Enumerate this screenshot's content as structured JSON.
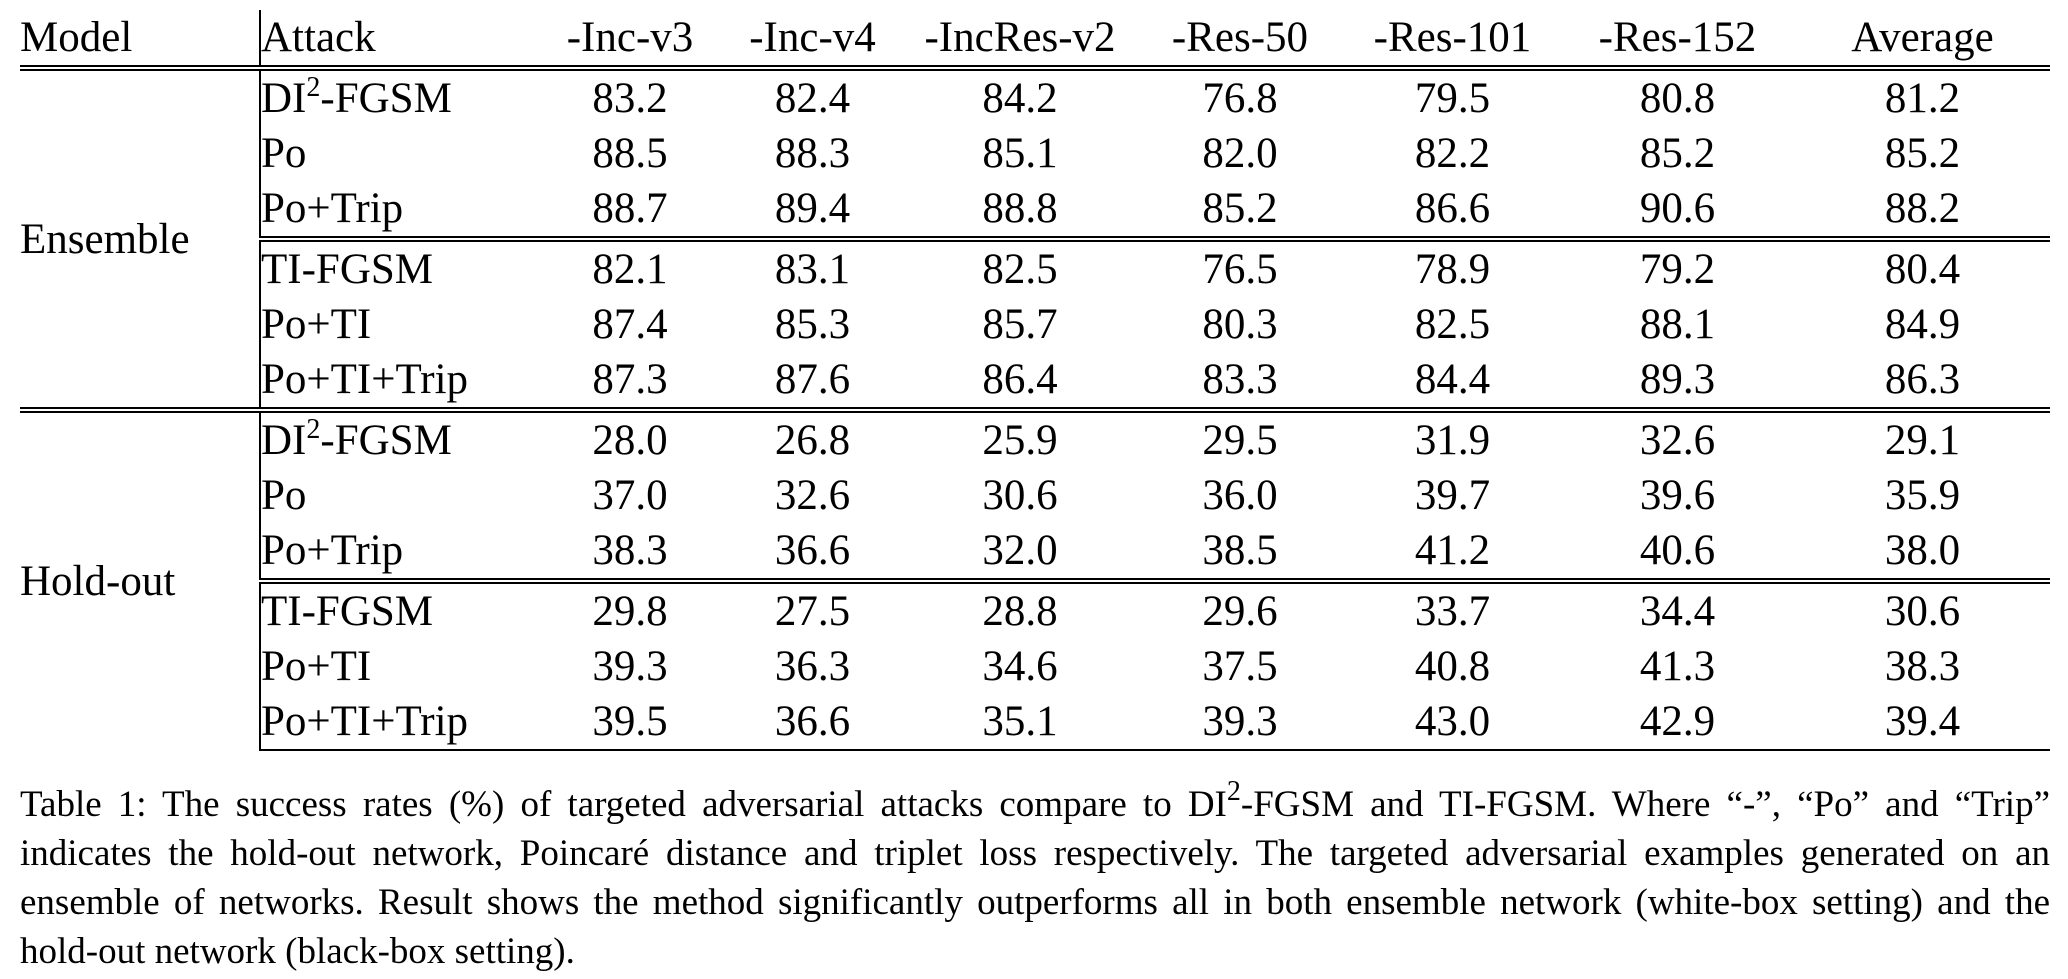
{
  "table": {
    "headers": [
      "Model",
      "Attack",
      "-Inc-v3",
      "-Inc-v4",
      "-IncRes-v2",
      "-Res-50",
      "-Res-101",
      "-Res-152",
      "Average"
    ],
    "groups": [
      {
        "model": "Ensemble",
        "blocks": [
          [
            {
              "attack_base": "DI",
              "attack_sup": "2",
              "attack_rest": "-FGSM",
              "values": [
                "83.2",
                "82.4",
                "84.2",
                "76.8",
                "79.5",
                "80.8",
                "81.2"
              ],
              "bold": [
                false,
                false,
                false,
                false,
                false,
                false,
                false
              ]
            },
            {
              "attack_base": "Po",
              "attack_sup": "",
              "attack_rest": "",
              "values": [
                "88.5",
                "88.3",
                "85.1",
                "82.0",
                "82.2",
                "85.2",
                "85.2"
              ],
              "bold": [
                false,
                false,
                false,
                false,
                false,
                false,
                false
              ]
            },
            {
              "attack_base": "Po+Trip",
              "attack_sup": "",
              "attack_rest": "",
              "values": [
                "88.7",
                "89.4",
                "88.8",
                "85.2",
                "86.6",
                "90.6",
                "88.2"
              ],
              "bold": [
                true,
                true,
                true,
                true,
                true,
                true,
                true
              ]
            }
          ],
          [
            {
              "attack_base": "TI-FGSM",
              "attack_sup": "",
              "attack_rest": "",
              "values": [
                "82.1",
                "83.1",
                "82.5",
                "76.5",
                "78.9",
                "79.2",
                "80.4"
              ],
              "bold": [
                false,
                false,
                false,
                false,
                false,
                false,
                false
              ]
            },
            {
              "attack_base": "Po+TI",
              "attack_sup": "",
              "attack_rest": "",
              "values": [
                "87.4",
                "85.3",
                "85.7",
                "80.3",
                "82.5",
                "88.1",
                "84.9"
              ],
              "bold": [
                true,
                false,
                false,
                false,
                false,
                false,
                false
              ]
            },
            {
              "attack_base": "Po+TI+Trip",
              "attack_sup": "",
              "attack_rest": "",
              "values": [
                "87.3",
                "87.6",
                "86.4",
                "83.3",
                "84.4",
                "89.3",
                "86.3"
              ],
              "bold": [
                false,
                true,
                true,
                true,
                true,
                true,
                true
              ]
            }
          ]
        ]
      },
      {
        "model": "Hold-out",
        "blocks": [
          [
            {
              "attack_base": "DI",
              "attack_sup": "2",
              "attack_rest": "-FGSM",
              "values": [
                "28.0",
                "26.8",
                "25.9",
                "29.5",
                "31.9",
                "32.6",
                "29.1"
              ],
              "bold": [
                false,
                false,
                false,
                false,
                false,
                false,
                false
              ]
            },
            {
              "attack_base": "Po",
              "attack_sup": "",
              "attack_rest": "",
              "values": [
                "37.0",
                "32.6",
                "30.6",
                "36.0",
                "39.7",
                "39.6",
                "35.9"
              ],
              "bold": [
                false,
                false,
                false,
                false,
                false,
                false,
                false
              ]
            },
            {
              "attack_base": "Po+Trip",
              "attack_sup": "",
              "attack_rest": "",
              "values": [
                "38.3",
                "36.6",
                "32.0",
                "38.5",
                "41.2",
                "40.6",
                "38.0"
              ],
              "bold": [
                true,
                true,
                true,
                true,
                true,
                true,
                true
              ]
            }
          ],
          [
            {
              "attack_base": "TI-FGSM",
              "attack_sup": "",
              "attack_rest": "",
              "values": [
                "29.8",
                "27.5",
                "28.8",
                "29.6",
                "33.7",
                "34.4",
                "30.6"
              ],
              "bold": [
                false,
                false,
                false,
                false,
                false,
                false,
                false
              ]
            },
            {
              "attack_base": "Po+TI",
              "attack_sup": "",
              "attack_rest": "",
              "values": [
                "39.3",
                "36.3",
                "34.6",
                "37.5",
                "40.8",
                "41.3",
                "38.3"
              ],
              "bold": [
                false,
                false,
                false,
                false,
                false,
                false,
                false
              ]
            },
            {
              "attack_base": "Po+TI+Trip",
              "attack_sup": "",
              "attack_rest": "",
              "values": [
                "39.5",
                "36.6",
                "35.1",
                "39.3",
                "43.0",
                "42.9",
                "39.4"
              ],
              "bold": [
                true,
                true,
                true,
                true,
                true,
                true,
                true
              ]
            }
          ]
        ]
      }
    ]
  },
  "caption": {
    "part1": "Table 1: The success rates (%) of targeted adversarial attacks compare to DI",
    "sup": "2",
    "part2": "-FGSM and TI-FGSM. Where “-”, “Po” and “Trip” indicates the hold-out network, Poincaré distance and triplet loss respectively.  The targeted adversarial examples generated on an ensemble of networks.  Result shows the method significantly outperforms all in both ensemble network (white-box setting) and the hold-out network (black-box setting)."
  }
}
